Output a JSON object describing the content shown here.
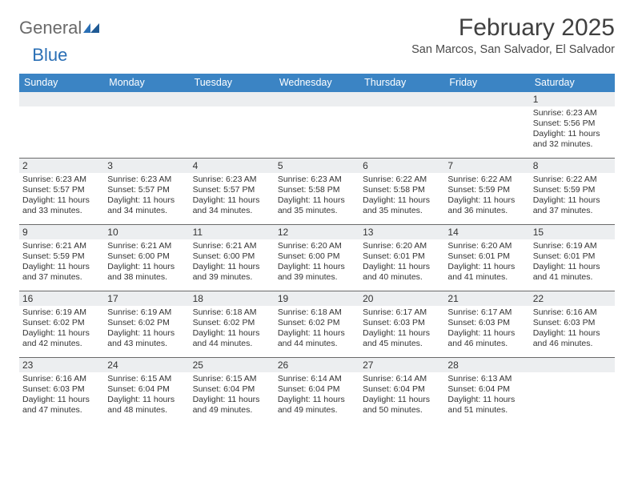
{
  "logo": {
    "text1": "General",
    "text2": "Blue"
  },
  "title": "February 2025",
  "location": "San Marcos, San Salvador, El Salvador",
  "colors": {
    "header_bg": "#3b84c4",
    "header_text": "#ffffff",
    "daynum_bg": "#eceef0",
    "row_border": "#6a6a6a",
    "text": "#333333",
    "logo_gray": "#6a6a6a",
    "logo_blue": "#2a6fb5"
  },
  "day_names": [
    "Sunday",
    "Monday",
    "Tuesday",
    "Wednesday",
    "Thursday",
    "Friday",
    "Saturday"
  ],
  "weeks": [
    [
      {
        "num": "",
        "sunrise": "",
        "sunset": "",
        "daylight": ""
      },
      {
        "num": "",
        "sunrise": "",
        "sunset": "",
        "daylight": ""
      },
      {
        "num": "",
        "sunrise": "",
        "sunset": "",
        "daylight": ""
      },
      {
        "num": "",
        "sunrise": "",
        "sunset": "",
        "daylight": ""
      },
      {
        "num": "",
        "sunrise": "",
        "sunset": "",
        "daylight": ""
      },
      {
        "num": "",
        "sunrise": "",
        "sunset": "",
        "daylight": ""
      },
      {
        "num": "1",
        "sunrise": "Sunrise: 6:23 AM",
        "sunset": "Sunset: 5:56 PM",
        "daylight": "Daylight: 11 hours and 32 minutes."
      }
    ],
    [
      {
        "num": "2",
        "sunrise": "Sunrise: 6:23 AM",
        "sunset": "Sunset: 5:57 PM",
        "daylight": "Daylight: 11 hours and 33 minutes."
      },
      {
        "num": "3",
        "sunrise": "Sunrise: 6:23 AM",
        "sunset": "Sunset: 5:57 PM",
        "daylight": "Daylight: 11 hours and 34 minutes."
      },
      {
        "num": "4",
        "sunrise": "Sunrise: 6:23 AM",
        "sunset": "Sunset: 5:57 PM",
        "daylight": "Daylight: 11 hours and 34 minutes."
      },
      {
        "num": "5",
        "sunrise": "Sunrise: 6:23 AM",
        "sunset": "Sunset: 5:58 PM",
        "daylight": "Daylight: 11 hours and 35 minutes."
      },
      {
        "num": "6",
        "sunrise": "Sunrise: 6:22 AM",
        "sunset": "Sunset: 5:58 PM",
        "daylight": "Daylight: 11 hours and 35 minutes."
      },
      {
        "num": "7",
        "sunrise": "Sunrise: 6:22 AM",
        "sunset": "Sunset: 5:59 PM",
        "daylight": "Daylight: 11 hours and 36 minutes."
      },
      {
        "num": "8",
        "sunrise": "Sunrise: 6:22 AM",
        "sunset": "Sunset: 5:59 PM",
        "daylight": "Daylight: 11 hours and 37 minutes."
      }
    ],
    [
      {
        "num": "9",
        "sunrise": "Sunrise: 6:21 AM",
        "sunset": "Sunset: 5:59 PM",
        "daylight": "Daylight: 11 hours and 37 minutes."
      },
      {
        "num": "10",
        "sunrise": "Sunrise: 6:21 AM",
        "sunset": "Sunset: 6:00 PM",
        "daylight": "Daylight: 11 hours and 38 minutes."
      },
      {
        "num": "11",
        "sunrise": "Sunrise: 6:21 AM",
        "sunset": "Sunset: 6:00 PM",
        "daylight": "Daylight: 11 hours and 39 minutes."
      },
      {
        "num": "12",
        "sunrise": "Sunrise: 6:20 AM",
        "sunset": "Sunset: 6:00 PM",
        "daylight": "Daylight: 11 hours and 39 minutes."
      },
      {
        "num": "13",
        "sunrise": "Sunrise: 6:20 AM",
        "sunset": "Sunset: 6:01 PM",
        "daylight": "Daylight: 11 hours and 40 minutes."
      },
      {
        "num": "14",
        "sunrise": "Sunrise: 6:20 AM",
        "sunset": "Sunset: 6:01 PM",
        "daylight": "Daylight: 11 hours and 41 minutes."
      },
      {
        "num": "15",
        "sunrise": "Sunrise: 6:19 AM",
        "sunset": "Sunset: 6:01 PM",
        "daylight": "Daylight: 11 hours and 41 minutes."
      }
    ],
    [
      {
        "num": "16",
        "sunrise": "Sunrise: 6:19 AM",
        "sunset": "Sunset: 6:02 PM",
        "daylight": "Daylight: 11 hours and 42 minutes."
      },
      {
        "num": "17",
        "sunrise": "Sunrise: 6:19 AM",
        "sunset": "Sunset: 6:02 PM",
        "daylight": "Daylight: 11 hours and 43 minutes."
      },
      {
        "num": "18",
        "sunrise": "Sunrise: 6:18 AM",
        "sunset": "Sunset: 6:02 PM",
        "daylight": "Daylight: 11 hours and 44 minutes."
      },
      {
        "num": "19",
        "sunrise": "Sunrise: 6:18 AM",
        "sunset": "Sunset: 6:02 PM",
        "daylight": "Daylight: 11 hours and 44 minutes."
      },
      {
        "num": "20",
        "sunrise": "Sunrise: 6:17 AM",
        "sunset": "Sunset: 6:03 PM",
        "daylight": "Daylight: 11 hours and 45 minutes."
      },
      {
        "num": "21",
        "sunrise": "Sunrise: 6:17 AM",
        "sunset": "Sunset: 6:03 PM",
        "daylight": "Daylight: 11 hours and 46 minutes."
      },
      {
        "num": "22",
        "sunrise": "Sunrise: 6:16 AM",
        "sunset": "Sunset: 6:03 PM",
        "daylight": "Daylight: 11 hours and 46 minutes."
      }
    ],
    [
      {
        "num": "23",
        "sunrise": "Sunrise: 6:16 AM",
        "sunset": "Sunset: 6:03 PM",
        "daylight": "Daylight: 11 hours and 47 minutes."
      },
      {
        "num": "24",
        "sunrise": "Sunrise: 6:15 AM",
        "sunset": "Sunset: 6:04 PM",
        "daylight": "Daylight: 11 hours and 48 minutes."
      },
      {
        "num": "25",
        "sunrise": "Sunrise: 6:15 AM",
        "sunset": "Sunset: 6:04 PM",
        "daylight": "Daylight: 11 hours and 49 minutes."
      },
      {
        "num": "26",
        "sunrise": "Sunrise: 6:14 AM",
        "sunset": "Sunset: 6:04 PM",
        "daylight": "Daylight: 11 hours and 49 minutes."
      },
      {
        "num": "27",
        "sunrise": "Sunrise: 6:14 AM",
        "sunset": "Sunset: 6:04 PM",
        "daylight": "Daylight: 11 hours and 50 minutes."
      },
      {
        "num": "28",
        "sunrise": "Sunrise: 6:13 AM",
        "sunset": "Sunset: 6:04 PM",
        "daylight": "Daylight: 11 hours and 51 minutes."
      },
      {
        "num": "",
        "sunrise": "",
        "sunset": "",
        "daylight": ""
      }
    ]
  ]
}
